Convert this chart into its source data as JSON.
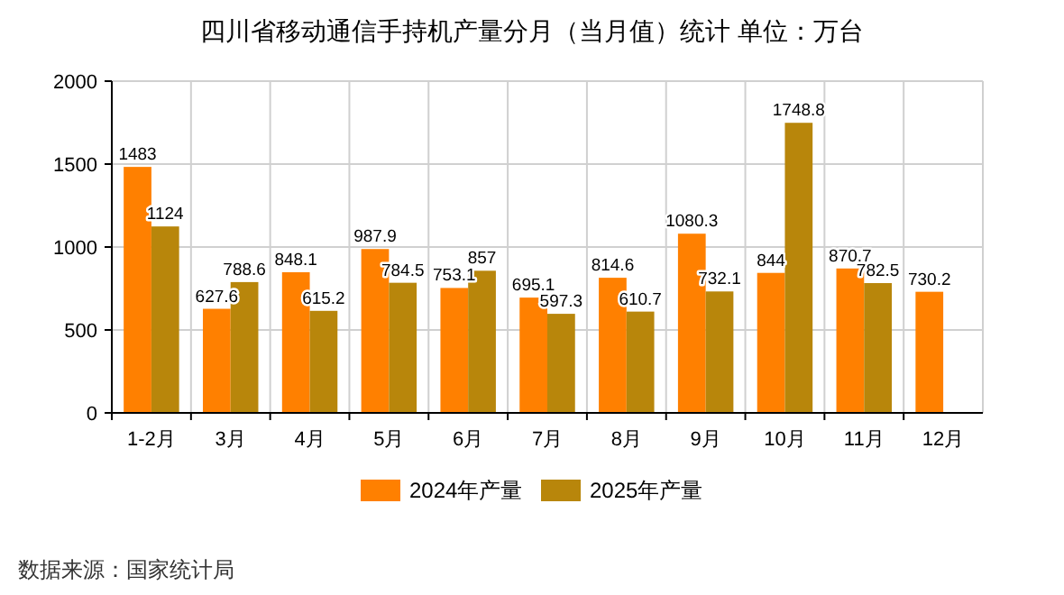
{
  "chart_data": {
    "type": "bar",
    "title": "四川省移动通信手持机产量分月（当月值）统计  单位：万台",
    "categories": [
      "1-2月",
      "3月",
      "4月",
      "5月",
      "6月",
      "7月",
      "8月",
      "9月",
      "10月",
      "11月",
      "12月"
    ],
    "series": [
      {
        "name": "2024年产量",
        "color": "#ff8000",
        "values": [
          1483,
          627.6,
          848.1,
          987.9,
          753.1,
          695.1,
          814.6,
          1080.3,
          844,
          870.7,
          730.2
        ]
      },
      {
        "name": "2025年产量",
        "color": "#b8860b",
        "values": [
          1124,
          788.6,
          615.2,
          784.5,
          857,
          597.3,
          610.7,
          732.1,
          1748.8,
          782.5,
          null
        ]
      }
    ],
    "ylim": [
      0,
      2000
    ],
    "yticks": [
      0,
      500,
      1000,
      1500,
      2000
    ],
    "grid": true,
    "legend": "bottom",
    "data_labels": true,
    "annotations": [
      "数据来源：国家统计局"
    ]
  }
}
